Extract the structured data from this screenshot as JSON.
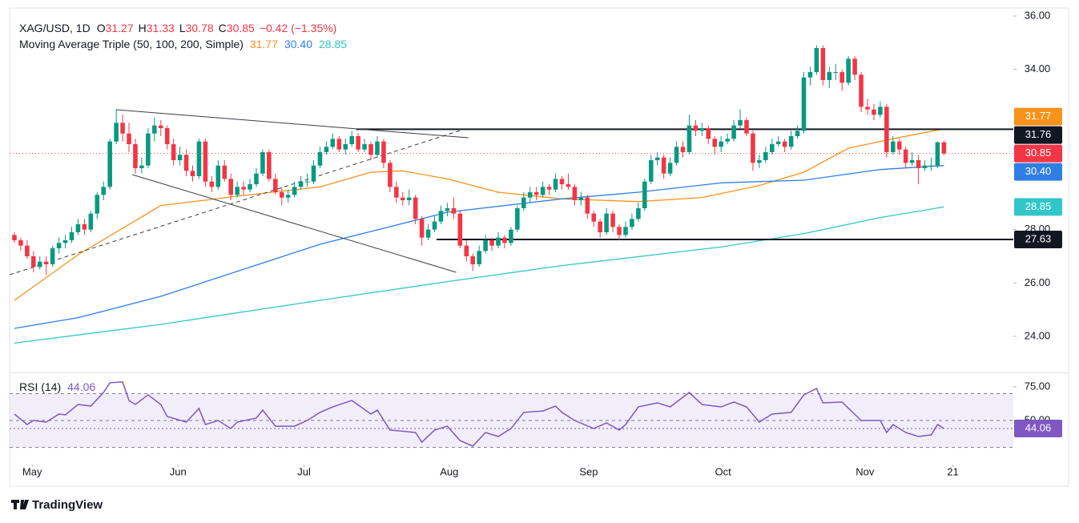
{
  "chart_data": {
    "type": "candlestick",
    "header": {
      "symbol": "XAG/USD, 1D",
      "fields": [
        {
          "key": "O",
          "value": "31.27"
        },
        {
          "key": "H",
          "value": "31.33"
        },
        {
          "key": "L",
          "value": "30.78"
        },
        {
          "key": "C",
          "value": "30.85"
        }
      ],
      "change": "−0.42 (−1.35%)"
    },
    "ma_legend": {
      "title": "Moving Average Triple (50, 100, 200, Simple)",
      "values": [
        "31.77",
        "30.40",
        "28.85"
      ]
    },
    "xlim": [
      -0.75,
      156.9
    ],
    "ylim": [
      22.65,
      36.6
    ],
    "yticks": [
      {
        "value": 24,
        "label": "24.00"
      },
      {
        "value": 26,
        "label": "26.00"
      },
      {
        "value": 28,
        "label": "28.00"
      },
      {
        "value": 34,
        "label": "34.00"
      },
      {
        "value": 36,
        "label": "36.00"
      }
    ],
    "xticks": [
      {
        "value": 2.8,
        "label": "May"
      },
      {
        "value": 25.7,
        "label": "Jun"
      },
      {
        "value": 45.5,
        "label": "Jul"
      },
      {
        "value": 68.3,
        "label": "Aug"
      },
      {
        "value": 90.2,
        "label": "Sep"
      },
      {
        "value": 111.3,
        "label": "Oct"
      },
      {
        "value": 133.6,
        "label": "Nov"
      },
      {
        "value": 147.4,
        "label": "21"
      }
    ],
    "up_color": "#089981",
    "down_color": "#f23645",
    "ohlc": [
      [
        27.8,
        27.9,
        27.5,
        27.6
      ],
      [
        27.6,
        27.7,
        27.2,
        27.4
      ],
      [
        27.4,
        27.6,
        26.9,
        27.0
      ],
      [
        27.0,
        27.2,
        26.4,
        26.6
      ],
      [
        26.6,
        27.0,
        26.5,
        26.8
      ],
      [
        26.8,
        27.0,
        26.3,
        26.7
      ],
      [
        26.7,
        27.4,
        26.6,
        27.3
      ],
      [
        27.3,
        27.7,
        27.1,
        27.5
      ],
      [
        27.5,
        27.8,
        27.3,
        27.6
      ],
      [
        27.6,
        28.1,
        27.5,
        27.9
      ],
      [
        27.9,
        28.4,
        27.8,
        28.2
      ],
      [
        28.2,
        28.4,
        27.8,
        28.0
      ],
      [
        28.0,
        28.7,
        27.9,
        28.6
      ],
      [
        28.6,
        29.4,
        28.4,
        29.3
      ],
      [
        29.3,
        29.8,
        29.1,
        29.6
      ],
      [
        29.6,
        31.4,
        29.5,
        31.3
      ],
      [
        31.3,
        32.5,
        31.2,
        32.0
      ],
      [
        32.0,
        32.3,
        31.3,
        31.6
      ],
      [
        31.6,
        32.0,
        30.9,
        31.2
      ],
      [
        31.2,
        31.4,
        30.1,
        30.3
      ],
      [
        30.3,
        30.7,
        30.1,
        30.4
      ],
      [
        30.4,
        31.8,
        30.3,
        31.6
      ],
      [
        31.6,
        32.2,
        31.3,
        31.9
      ],
      [
        31.9,
        32.1,
        31.5,
        31.8
      ],
      [
        31.8,
        31.9,
        31.0,
        31.2
      ],
      [
        31.2,
        31.4,
        30.4,
        30.6
      ],
      [
        30.6,
        31.1,
        30.4,
        30.8
      ],
      [
        30.8,
        31.0,
        30.0,
        30.2
      ],
      [
        30.2,
        30.4,
        29.8,
        30.0
      ],
      [
        30.0,
        31.4,
        29.9,
        31.3
      ],
      [
        31.3,
        31.4,
        29.6,
        29.8
      ],
      [
        29.8,
        30.0,
        29.4,
        29.6
      ],
      [
        29.6,
        30.6,
        29.5,
        30.4
      ],
      [
        30.4,
        30.6,
        29.8,
        29.9
      ],
      [
        29.9,
        30.1,
        29.1,
        29.3
      ],
      [
        29.3,
        29.8,
        29.2,
        29.6
      ],
      [
        29.6,
        29.8,
        29.3,
        29.5
      ],
      [
        29.5,
        29.9,
        29.4,
        29.7
      ],
      [
        29.7,
        30.3,
        29.6,
        30.1
      ],
      [
        30.1,
        31.0,
        30.0,
        30.9
      ],
      [
        30.9,
        31.0,
        29.8,
        29.9
      ],
      [
        29.9,
        30.1,
        29.3,
        29.4
      ],
      [
        29.4,
        29.6,
        28.9,
        29.2
      ],
      [
        29.2,
        29.5,
        29.0,
        29.3
      ],
      [
        29.3,
        29.8,
        29.2,
        29.6
      ],
      [
        29.6,
        30.0,
        29.5,
        29.8
      ],
      [
        29.8,
        30.1,
        29.6,
        29.8
      ],
      [
        29.8,
        30.6,
        29.7,
        30.4
      ],
      [
        30.4,
        31.1,
        30.3,
        30.9
      ],
      [
        30.9,
        31.3,
        30.8,
        31.1
      ],
      [
        31.1,
        31.6,
        31.0,
        31.4
      ],
      [
        31.4,
        31.5,
        30.9,
        31.0
      ],
      [
        31.0,
        31.4,
        30.8,
        31.2
      ],
      [
        31.2,
        31.7,
        31.1,
        31.5
      ],
      [
        31.5,
        31.6,
        30.9,
        31.0
      ],
      [
        31.0,
        31.4,
        30.9,
        31.2
      ],
      [
        31.2,
        31.3,
        30.6,
        30.8
      ],
      [
        30.8,
        31.5,
        30.7,
        31.3
      ],
      [
        31.3,
        31.4,
        30.3,
        30.5
      ],
      [
        30.5,
        30.6,
        29.4,
        29.6
      ],
      [
        29.6,
        29.8,
        29.0,
        29.2
      ],
      [
        29.2,
        29.4,
        28.9,
        29.1
      ],
      [
        29.1,
        29.5,
        28.9,
        29.2
      ],
      [
        29.2,
        29.3,
        28.2,
        28.4
      ],
      [
        28.4,
        28.5,
        27.4,
        27.7
      ],
      [
        27.7,
        28.2,
        27.6,
        28.0
      ],
      [
        28.0,
        28.5,
        27.9,
        28.3
      ],
      [
        28.3,
        28.9,
        28.2,
        28.7
      ],
      [
        28.7,
        29.0,
        28.5,
        28.8
      ],
      [
        28.8,
        29.2,
        28.4,
        28.6
      ],
      [
        28.6,
        28.7,
        27.3,
        27.4
      ],
      [
        27.4,
        27.6,
        26.8,
        27.0
      ],
      [
        27.0,
        27.1,
        26.45,
        26.7
      ],
      [
        26.7,
        27.4,
        26.6,
        27.2
      ],
      [
        27.2,
        27.8,
        27.1,
        27.6
      ],
      [
        27.6,
        27.7,
        27.2,
        27.4
      ],
      [
        27.4,
        27.9,
        27.3,
        27.7
      ],
      [
        27.7,
        27.8,
        27.3,
        27.5
      ],
      [
        27.5,
        28.1,
        27.4,
        28.0
      ],
      [
        28.0,
        28.9,
        27.9,
        28.8
      ],
      [
        28.8,
        29.4,
        28.7,
        29.2
      ],
      [
        29.2,
        29.6,
        29.0,
        29.4
      ],
      [
        29.4,
        29.6,
        29.1,
        29.3
      ],
      [
        29.3,
        29.8,
        29.2,
        29.6
      ],
      [
        29.6,
        29.7,
        29.3,
        29.5
      ],
      [
        29.5,
        30.1,
        29.4,
        29.9
      ],
      [
        29.9,
        30.0,
        29.5,
        29.7
      ],
      [
        29.7,
        30.1,
        29.5,
        29.6
      ],
      [
        29.6,
        29.7,
        28.9,
        29.1
      ],
      [
        29.1,
        29.4,
        28.9,
        29.2
      ],
      [
        29.2,
        29.3,
        28.4,
        28.6
      ],
      [
        28.6,
        28.7,
        28.1,
        28.3
      ],
      [
        28.3,
        28.4,
        27.7,
        27.9
      ],
      [
        27.9,
        28.8,
        27.8,
        28.6
      ],
      [
        28.6,
        28.7,
        27.9,
        28.1
      ],
      [
        28.1,
        28.2,
        27.6,
        27.8
      ],
      [
        27.8,
        28.3,
        27.7,
        28.1
      ],
      [
        28.1,
        28.6,
        28.0,
        28.4
      ],
      [
        28.4,
        29.0,
        28.3,
        28.8
      ],
      [
        28.8,
        29.9,
        28.7,
        29.8
      ],
      [
        29.8,
        30.8,
        29.7,
        30.6
      ],
      [
        30.6,
        30.9,
        30.4,
        30.7
      ],
      [
        30.7,
        30.8,
        29.9,
        30.1
      ],
      [
        30.1,
        30.7,
        30.0,
        30.5
      ],
      [
        30.5,
        31.3,
        30.4,
        31.1
      ],
      [
        31.1,
        31.3,
        30.7,
        30.9
      ],
      [
        30.9,
        32.3,
        30.8,
        31.9
      ],
      [
        31.9,
        32.1,
        31.5,
        31.7
      ],
      [
        31.7,
        32.0,
        31.5,
        31.8
      ],
      [
        31.8,
        31.9,
        31.2,
        31.4
      ],
      [
        31.4,
        31.5,
        30.8,
        31.1
      ],
      [
        31.1,
        31.5,
        30.9,
        31.3
      ],
      [
        31.3,
        31.6,
        31.2,
        31.4
      ],
      [
        31.4,
        32.1,
        31.3,
        31.9
      ],
      [
        31.9,
        32.5,
        31.8,
        32.1
      ],
      [
        32.1,
        32.2,
        31.5,
        31.6
      ],
      [
        31.6,
        31.7,
        30.2,
        30.5
      ],
      [
        30.5,
        30.8,
        30.3,
        30.6
      ],
      [
        30.6,
        31.1,
        30.5,
        30.9
      ],
      [
        30.9,
        31.4,
        30.8,
        31.2
      ],
      [
        31.2,
        31.5,
        31.1,
        31.3
      ],
      [
        31.3,
        31.4,
        30.9,
        31.1
      ],
      [
        31.1,
        31.7,
        31.0,
        31.5
      ],
      [
        31.5,
        31.9,
        31.4,
        31.7
      ],
      [
        31.7,
        33.9,
        31.6,
        33.7
      ],
      [
        33.7,
        34.1,
        33.4,
        33.9
      ],
      [
        33.9,
        34.9,
        33.8,
        34.8
      ],
      [
        34.8,
        34.9,
        33.4,
        33.6
      ],
      [
        33.6,
        34.1,
        33.3,
        33.9
      ],
      [
        33.9,
        34.2,
        33.6,
        33.9
      ],
      [
        33.9,
        34.0,
        33.2,
        33.5
      ],
      [
        33.5,
        34.5,
        33.4,
        34.4
      ],
      [
        34.4,
        34.5,
        33.6,
        33.8
      ],
      [
        33.8,
        33.9,
        32.4,
        32.6
      ],
      [
        32.6,
        32.9,
        32.3,
        32.5
      ],
      [
        32.5,
        32.7,
        32.1,
        32.3
      ],
      [
        32.3,
        32.8,
        32.2,
        32.6
      ],
      [
        32.6,
        32.7,
        30.7,
        30.9
      ],
      [
        30.9,
        31.5,
        30.8,
        31.3
      ],
      [
        31.3,
        31.4,
        30.8,
        31.0
      ],
      [
        31.0,
        31.1,
        30.3,
        30.5
      ],
      [
        30.5,
        30.9,
        30.4,
        30.6
      ],
      [
        30.6,
        30.8,
        29.7,
        30.3
      ],
      [
        30.3,
        30.6,
        30.2,
        30.4
      ],
      [
        30.4,
        30.7,
        30.2,
        30.4
      ],
      [
        30.4,
        31.3,
        30.3,
        31.27
      ],
      [
        31.27,
        31.33,
        30.78,
        30.85
      ]
    ],
    "ma_series": [
      {
        "color": "#f7931a",
        "x": [
          0,
          10,
          23,
          35,
          48,
          56,
          61,
          68,
          76,
          86,
          98,
          108,
          117,
          124,
          131,
          139,
          146
        ],
        "values": [
          25.35,
          27.06,
          28.9,
          29.25,
          29.6,
          30.15,
          30.2,
          29.9,
          29.4,
          29.15,
          29.05,
          29.2,
          29.65,
          30.15,
          31.05,
          31.45,
          31.77
        ]
      },
      {
        "color": "#2f7ee6",
        "x": [
          0,
          10,
          23,
          48,
          68,
          86,
          98,
          111,
          124,
          136,
          146
        ],
        "values": [
          24.3,
          24.7,
          25.5,
          27.45,
          28.65,
          29.15,
          29.4,
          29.75,
          29.85,
          30.25,
          30.4
        ]
      },
      {
        "color": "#33c6c9",
        "x": [
          0,
          23,
          48,
          68,
          86,
          111,
          124,
          136,
          146
        ],
        "values": [
          23.75,
          24.45,
          25.35,
          26.05,
          26.65,
          27.35,
          27.85,
          28.45,
          28.85
        ]
      }
    ],
    "levels": [
      {
        "value": 31.76,
        "from": 53.7
      },
      {
        "value": 27.63,
        "from": 66.3
      }
    ],
    "trendlines": [
      {
        "x": [
          16,
          71.3
        ],
        "y": [
          32.49,
          31.44
        ],
        "dashed": false
      },
      {
        "x": [
          18.5,
          69.4
        ],
        "y": [
          30.06,
          26.4
        ],
        "dashed": false
      },
      {
        "x": [
          -0.75,
          70
        ],
        "y": [
          26.31,
          31.71
        ],
        "dashed": true
      }
    ],
    "badges": [
      {
        "value": 31.77,
        "label": "31.77",
        "color": "#f7931a"
      },
      {
        "value": 31.76,
        "label": "31.76",
        "color": "#131722"
      },
      {
        "value": 30.85,
        "label": "30.85",
        "color": "#f23645"
      },
      {
        "value": 30.4,
        "label": "30.40",
        "color": "#2f7ee6"
      },
      {
        "value": 28.85,
        "label": "28.85",
        "color": "#33c6c9"
      },
      {
        "value": 27.63,
        "label": "27.63",
        "color": "#131722"
      }
    ],
    "rsi": {
      "type": "line",
      "label": "RSI (14)",
      "value_label": "44.06",
      "color": "#7e57c2",
      "ylim": [
        17.3,
        84.5
      ],
      "yticks": [
        {
          "value": 75,
          "label": "75.00"
        },
        {
          "value": 50,
          "label": "50.00"
        }
      ],
      "bands": [
        30,
        50,
        70
      ],
      "x": [
        0,
        2,
        3,
        5,
        7,
        8,
        10,
        12,
        14,
        15,
        17,
        18,
        19,
        21,
        23,
        24,
        27,
        29,
        30,
        32,
        34,
        35,
        38,
        39,
        41,
        44,
        46,
        48,
        50,
        53,
        56,
        57,
        59,
        63,
        64,
        66,
        68,
        70,
        72,
        74,
        76,
        78,
        80,
        83,
        85,
        86,
        88,
        91,
        93,
        95,
        96,
        98,
        101,
        103,
        106,
        108,
        111,
        113,
        115,
        117,
        119,
        122,
        124,
        126,
        127,
        130,
        133,
        136,
        137,
        138,
        140,
        142,
        144,
        145,
        146
      ],
      "values": [
        54.8,
        47.0,
        50.0,
        48.8,
        54.8,
        54.2,
        61.9,
        60.7,
        70.8,
        78.0,
        78.6,
        64.9,
        61.9,
        69.0,
        61.9,
        53.0,
        48.8,
        58.9,
        47.0,
        50.0,
        44.0,
        48.8,
        51.8,
        57.7,
        45.8,
        45.8,
        50.0,
        56.0,
        60.1,
        64.9,
        54.8,
        57.7,
        42.9,
        41.1,
        33.9,
        42.9,
        45.8,
        35.1,
        31.0,
        41.1,
        38.1,
        44.0,
        56.0,
        57.1,
        60.7,
        56.0,
        50.0,
        44.0,
        48.2,
        42.9,
        47.0,
        60.1,
        63.1,
        60.1,
        70.8,
        61.9,
        60.1,
        63.7,
        60.1,
        48.8,
        54.8,
        56.0,
        69.0,
        73.8,
        63.1,
        63.7,
        50.0,
        50.0,
        41.1,
        47.0,
        41.1,
        38.1,
        39.3,
        47.0,
        44.06
      ],
      "badge": {
        "value": 44.06,
        "label": "44.06"
      }
    },
    "brand": "TradingView"
  }
}
